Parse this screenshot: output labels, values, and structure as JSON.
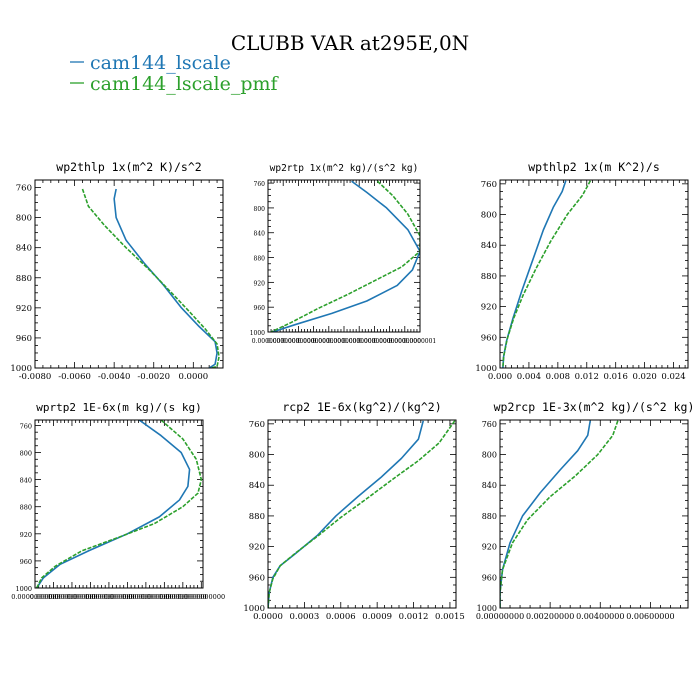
{
  "figure": {
    "title": "CLUBB VAR at295E,0N",
    "legend": [
      {
        "name": "cam144_lscale",
        "color": "#1f77b4"
      },
      {
        "name": "cam144_lscale_pmf",
        "color": "#2ca02c"
      }
    ]
  },
  "chart_data": [
    {
      "type": "line",
      "title": "wp2thlp   1x(m^2 K)/s^2",
      "xlim": [
        -0.008,
        0.0015
      ],
      "ylim": [
        1000,
        750
      ],
      "xticks": [
        "-0.0080",
        "-0.0060",
        "-0.0040",
        "-0.0020",
        "0.0000"
      ],
      "xtick_values": [
        -0.008,
        -0.006,
        -0.004,
        -0.002,
        0.0
      ],
      "yticks": [
        "760",
        "800",
        "840",
        "880",
        "920",
        "960",
        "1000"
      ],
      "ytick_values": [
        760,
        800,
        840,
        880,
        920,
        960,
        1000
      ],
      "series": [
        {
          "name": "cam144_lscale",
          "color": "#1f77b4",
          "dash": false,
          "points": [
            [
              -0.0039,
              762
            ],
            [
              -0.004,
              775
            ],
            [
              -0.0039,
              800
            ],
            [
              -0.0034,
              830
            ],
            [
              -0.0025,
              860
            ],
            [
              -0.0015,
              890
            ],
            [
              -0.0006,
              920
            ],
            [
              0.0003,
              945
            ],
            [
              0.0011,
              965
            ],
            [
              0.0012,
              980
            ],
            [
              0.0011,
              995
            ],
            [
              0.0008,
              1000
            ]
          ]
        },
        {
          "name": "cam144_lscale_pmf",
          "color": "#2ca02c",
          "dash": true,
          "points": [
            [
              -0.0056,
              762
            ],
            [
              -0.0053,
              785
            ],
            [
              -0.0045,
              810
            ],
            [
              -0.0034,
              840
            ],
            [
              -0.0022,
              870
            ],
            [
              -0.0011,
              900
            ],
            [
              -0.0002,
              925
            ],
            [
              0.0006,
              948
            ],
            [
              0.0012,
              968
            ],
            [
              0.0013,
              985
            ],
            [
              0.0012,
              998
            ],
            [
              0.0009,
              1000
            ]
          ]
        }
      ]
    },
    {
      "type": "line",
      "title": "wp2rtp   1x(m^2 kg)/(s^2 kg)",
      "xlim": [
        0.0,
        1e-07
      ],
      "ylim": [
        1000,
        755
      ],
      "xticks": [
        "0.0000000",
        "0.0000000",
        "0.0000000",
        "0.0000000",
        "0.0000000",
        "0.0000000",
        "0.0000000",
        "0.0000000",
        "0.0000000",
        "0.0000000",
        "0.0000001"
      ],
      "xtick_values": [
        0.0,
        1e-08,
        2e-08,
        3e-08,
        4e-08,
        5e-08,
        6e-08,
        7e-08,
        8e-08,
        9e-08,
        1e-07
      ],
      "yticks": [
        "760",
        "800",
        "840",
        "880",
        "920",
        "960",
        "1000"
      ],
      "ytick_values": [
        760,
        800,
        840,
        880,
        920,
        960,
        1000
      ],
      "series": [
        {
          "name": "cam144_lscale",
          "color": "#1f77b4",
          "dash": false,
          "points": [
            [
              5.5e-08,
              757
            ],
            [
              6.5e-08,
              775
            ],
            [
              7.8e-08,
              800
            ],
            [
              9.2e-08,
              835
            ],
            [
              1e-07,
              870
            ],
            [
              9.5e-08,
              900
            ],
            [
              8.5e-08,
              925
            ],
            [
              6.5e-08,
              950
            ],
            [
              4.2e-08,
              970
            ],
            [
              1.8e-08,
              988
            ],
            [
              3e-09,
              1000
            ]
          ]
        },
        {
          "name": "cam144_lscale_pmf",
          "color": "#2ca02c",
          "dash": true,
          "points": [
            [
              7.2e-08,
              757
            ],
            [
              8.2e-08,
              780
            ],
            [
              9.2e-08,
              810
            ],
            [
              1e-07,
              845
            ],
            [
              1e-07,
              870
            ],
            [
              8.8e-08,
              895
            ],
            [
              7.2e-08,
              915
            ],
            [
              5.2e-08,
              940
            ],
            [
              3.3e-08,
              962
            ],
            [
              1.5e-08,
              985
            ],
            [
              2e-09,
              1000
            ]
          ]
        }
      ]
    },
    {
      "type": "line",
      "title": "wpthlp2   1x(m K^2)/s",
      "xlim": [
        0.0,
        0.026
      ],
      "ylim": [
        1000,
        755
      ],
      "xticks": [
        "0.000",
        "0.004",
        "0.008",
        "0.012",
        "0.016",
        "0.020",
        "0.024"
      ],
      "xtick_values": [
        0.0,
        0.004,
        0.008,
        0.012,
        0.016,
        0.02,
        0.024
      ],
      "yticks": [
        "760",
        "800",
        "840",
        "880",
        "920",
        "960",
        "1000"
      ],
      "ytick_values": [
        760,
        800,
        840,
        880,
        920,
        960,
        1000
      ],
      "series": [
        {
          "name": "cam144_lscale",
          "color": "#1f77b4",
          "dash": false,
          "points": [
            [
              0.0091,
              756
            ],
            [
              0.0086,
              770
            ],
            [
              0.0074,
              790
            ],
            [
              0.006,
              820
            ],
            [
              0.0045,
              860
            ],
            [
              0.003,
              900
            ],
            [
              0.0018,
              935
            ],
            [
              0.0009,
              965
            ],
            [
              0.0005,
              985
            ],
            [
              0.0004,
              1000
            ]
          ]
        },
        {
          "name": "cam144_lscale_pmf",
          "color": "#2ca02c",
          "dash": true,
          "points": [
            [
              0.0125,
              756
            ],
            [
              0.0114,
              775
            ],
            [
              0.0093,
              800
            ],
            [
              0.007,
              835
            ],
            [
              0.005,
              870
            ],
            [
              0.0032,
              905
            ],
            [
              0.0019,
              935
            ],
            [
              0.001,
              962
            ],
            [
              0.0005,
              985
            ],
            [
              0.0004,
              1000
            ]
          ]
        }
      ]
    },
    {
      "type": "line",
      "title": "wprtp2   1E-6x(m kg)/(s kg)",
      "xlim": [
        0.0,
        1e-08
      ],
      "ylim": [
        1000,
        752
      ],
      "xticks": [
        "0.0000000000",
        "0.0000000000",
        "0.0000000000",
        "0.0000000000",
        "0.0000000000",
        "0.0000000000",
        "0.0000000000",
        "0.0000000000",
        "0.0000000000",
        "0.0000000000"
      ],
      "xtick_values": [
        0.0,
        1.1e-09,
        2.2e-09,
        3.3e-09,
        4.4e-09,
        5.5e-09,
        6.6e-09,
        7.7e-09,
        8.8e-09,
        9.9e-09
      ],
      "yticks": [
        "760",
        "800",
        "840",
        "880",
        "920",
        "960",
        "1000"
      ],
      "ytick_values": [
        760,
        800,
        840,
        880,
        920,
        960,
        1000
      ],
      "series": [
        {
          "name": "cam144_lscale",
          "color": "#1f77b4",
          "dash": false,
          "points": [
            [
              6.2e-09,
              752
            ],
            [
              7.5e-09,
              775
            ],
            [
              8.7e-09,
              800
            ],
            [
              9.2e-09,
              825
            ],
            [
              9.1e-09,
              850
            ],
            [
              8.6e-09,
              870
            ],
            [
              7.4e-09,
              895
            ],
            [
              5.5e-09,
              920
            ],
            [
              3.2e-09,
              945
            ],
            [
              1.5e-09,
              965
            ],
            [
              5e-10,
              985
            ],
            [
              1e-10,
              1000
            ]
          ]
        },
        {
          "name": "cam144_lscale_pmf",
          "color": "#2ca02c",
          "dash": true,
          "points": [
            [
              7.5e-09,
              752
            ],
            [
              8.8e-09,
              780
            ],
            [
              9.6e-09,
              810
            ],
            [
              9.9e-09,
              840
            ],
            [
              9.7e-09,
              860
            ],
            [
              8.8e-09,
              880
            ],
            [
              7.1e-09,
              905
            ],
            [
              5e-09,
              925
            ],
            [
              2.8e-09,
              945
            ],
            [
              1.2e-09,
              968
            ],
            [
              4e-10,
              985
            ],
            [
              1e-10,
              1000
            ]
          ]
        }
      ]
    },
    {
      "type": "line",
      "title": "rcp2   1E-6x(kg^2)/(kg^2)",
      "xlim": [
        0.0,
        0.00155
      ],
      "ylim": [
        1000,
        755
      ],
      "xticks": [
        "0.0000",
        "0.0003",
        "0.0006",
        "0.0009",
        "0.0012",
        "0.0015"
      ],
      "xtick_values": [
        0.0,
        0.0003,
        0.0006,
        0.0009,
        0.0012,
        0.0015
      ],
      "yticks": [
        "760",
        "800",
        "840",
        "880",
        "920",
        "960",
        "1000"
      ],
      "ytick_values": [
        760,
        800,
        840,
        880,
        920,
        960,
        1000
      ],
      "series": [
        {
          "name": "cam144_lscale",
          "color": "#1f77b4",
          "dash": false,
          "points": [
            [
              0.00128,
              756
            ],
            [
              0.00124,
              780
            ],
            [
              0.0011,
              805
            ],
            [
              0.00093,
              830
            ],
            [
              0.00074,
              855
            ],
            [
              0.00056,
              880
            ],
            [
              0.00041,
              905
            ],
            [
              0.00022,
              930
            ],
            [
              0.0001,
              945
            ],
            [
              4e-05,
              960
            ],
            [
              1e-05,
              980
            ],
            [
              0.0,
              1000
            ]
          ]
        },
        {
          "name": "cam144_lscale_pmf",
          "color": "#2ca02c",
          "dash": true,
          "points": [
            [
              0.00154,
              756
            ],
            [
              0.00141,
              785
            ],
            [
              0.00124,
              808
            ],
            [
              0.00103,
              832
            ],
            [
              0.00081,
              858
            ],
            [
              0.0006,
              882
            ],
            [
              0.00042,
              905
            ],
            [
              0.00023,
              928
            ],
            [
              0.0001,
              945
            ],
            [
              4e-05,
              962
            ],
            [
              1e-05,
              980
            ],
            [
              0.0,
              1000
            ]
          ]
        }
      ]
    },
    {
      "type": "line",
      "title": "wp2rcp   1E-3x(m^2 kg)/(s^2 kg)",
      "xlim": [
        0.0,
        0.0075
      ],
      "ylim": [
        1000,
        755
      ],
      "xticks": [
        "0.00000000",
        "0.00200000",
        "0.00400000",
        "0.00600000"
      ],
      "xtick_values": [
        0.0,
        0.002,
        0.004,
        0.006
      ],
      "yticks": [
        "760",
        "800",
        "840",
        "880",
        "920",
        "960",
        "1000"
      ],
      "ytick_values": [
        760,
        800,
        840,
        880,
        920,
        960,
        1000
      ],
      "series": [
        {
          "name": "cam144_lscale",
          "color": "#1f77b4",
          "dash": false,
          "points": [
            [
              0.0036,
              756
            ],
            [
              0.0035,
              775
            ],
            [
              0.0031,
              795
            ],
            [
              0.0024,
              820
            ],
            [
              0.0016,
              850
            ],
            [
              0.0009,
              880
            ],
            [
              0.0004,
              915
            ],
            [
              0.0001,
              950
            ],
            [
              0.0,
              980
            ],
            [
              0.0,
              1000
            ]
          ]
        },
        {
          "name": "cam144_lscale_pmf",
          "color": "#2ca02c",
          "dash": true,
          "points": [
            [
              0.0047,
              756
            ],
            [
              0.0045,
              775
            ],
            [
              0.0039,
              800
            ],
            [
              0.003,
              828
            ],
            [
              0.002,
              855
            ],
            [
              0.0011,
              885
            ],
            [
              0.0005,
              915
            ],
            [
              0.0001,
              950
            ],
            [
              0.0,
              980
            ],
            [
              0.0,
              1000
            ]
          ]
        }
      ]
    }
  ]
}
